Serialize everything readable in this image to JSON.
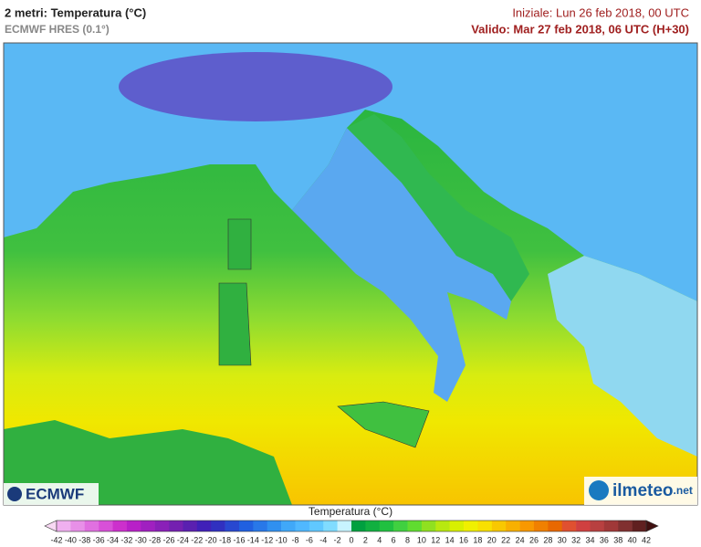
{
  "header": {
    "title": "2 metri: Temperatura (°C)",
    "model": "ECMWF HRES (0.1°)",
    "initial": "Iniziale: Lun 26 feb 2018, 00 UTC",
    "valid": "Valido: Mar 27 feb 2018, 06 UTC (H+30)"
  },
  "logos": {
    "left": "ECMWF",
    "right": "ilmeteo",
    "right_suffix": ".net"
  },
  "legend": {
    "title": "Temperatura (°C)",
    "ticks": [
      -42,
      -40,
      -38,
      -36,
      -34,
      -32,
      -30,
      -28,
      -26,
      -24,
      -22,
      -20,
      -18,
      -16,
      -14,
      -12,
      -10,
      -8,
      -6,
      -4,
      -2,
      0,
      2,
      4,
      6,
      8,
      10,
      12,
      14,
      16,
      18,
      20,
      22,
      24,
      26,
      28,
      30,
      32,
      34,
      36,
      38,
      40,
      42
    ],
    "colors": [
      "#f8d8f4",
      "#f0b0f0",
      "#e890e8",
      "#e070e0",
      "#d850d8",
      "#cc30cc",
      "#b820c8",
      "#a020c0",
      "#8a20b8",
      "#7420b0",
      "#5a20b0",
      "#4020b8",
      "#3030c0",
      "#2848d0",
      "#2060e0",
      "#2878e8",
      "#3090f0",
      "#40a8f8",
      "#50b8ff",
      "#60c8ff",
      "#80dcff",
      "#c8f4ff",
      "#00a040",
      "#10b040",
      "#20c040",
      "#40d040",
      "#60dc30",
      "#90e020",
      "#b8e810",
      "#d8f000",
      "#f0f000",
      "#f8e000",
      "#f8c800",
      "#f8b000",
      "#f89800",
      "#f08000",
      "#e86800",
      "#e05030",
      "#d04040",
      "#b84040",
      "#a03838",
      "#803030",
      "#602020",
      "#401010"
    ]
  }
}
